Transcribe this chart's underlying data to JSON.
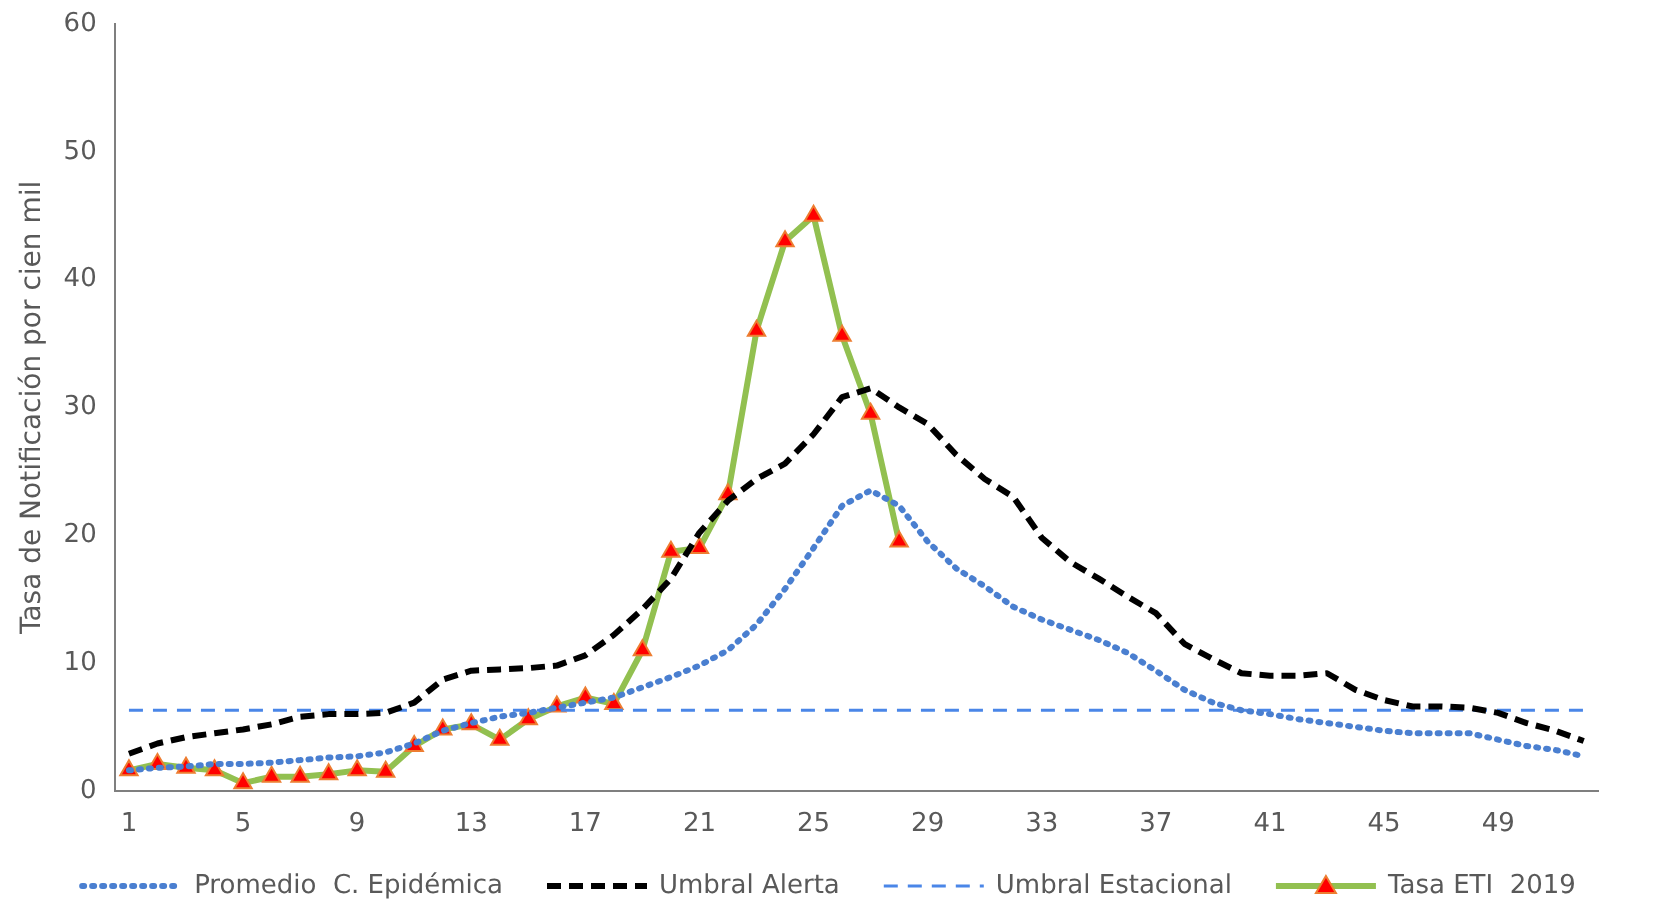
{
  "chart_data": {
    "type": "line",
    "ylabel": "Tasa de Notificación por cien mil",
    "categories": [
      "1",
      null,
      null,
      null,
      "5",
      null,
      null,
      null,
      "9",
      null,
      null,
      null,
      "13",
      null,
      null,
      null,
      "17",
      null,
      null,
      null,
      "21",
      null,
      null,
      null,
      "25",
      null,
      null,
      null,
      "29",
      null,
      null,
      null,
      "33",
      null,
      null,
      null,
      "37",
      null,
      null,
      null,
      "41",
      null,
      null,
      null,
      "45",
      null,
      null,
      null,
      "49",
      null,
      null,
      null
    ],
    "ylim": [
      0,
      60
    ],
    "yticks": [
      0,
      10,
      20,
      30,
      40,
      50,
      60
    ],
    "grid": false,
    "legend": "bottom",
    "series": [
      {
        "name": "Promedio  C. Epidémica",
        "color": "#4a7fd0",
        "line_style": "dotted",
        "marker": "none",
        "values": [
          1.6,
          1.8,
          1.9,
          2.1,
          2.1,
          2.2,
          2.4,
          2.6,
          2.7,
          3,
          3.7,
          4.7,
          5.3,
          5.8,
          6.1,
          6.5,
          6.9,
          7.3,
          8.1,
          8.9,
          9.8,
          11,
          13,
          15.8,
          19,
          22.3,
          23.5,
          22.3,
          19.5,
          17.4,
          16,
          14.4,
          13.4,
          12.6,
          11.8,
          10.8,
          9.4,
          7.9,
          6.9,
          6.3,
          6,
          5.6,
          5.3,
          5,
          4.7,
          4.5,
          4.5,
          4.5,
          4,
          3.5,
          3.2,
          2.7
        ]
      },
      {
        "name": "Umbral Alerta",
        "color": "#000000",
        "line_style": "dashed",
        "marker": "none",
        "values": [
          2.9,
          3.7,
          4.2,
          4.5,
          4.8,
          5.2,
          5.8,
          6,
          6,
          6.1,
          6.9,
          8.7,
          9.4,
          9.5,
          9.6,
          9.8,
          10.6,
          12.2,
          14.2,
          16.6,
          20.2,
          22.7,
          24.4,
          25.6,
          27.9,
          30.8,
          31.5,
          30,
          28.7,
          26.3,
          24.4,
          23,
          19.8,
          17.9,
          16.6,
          15.2,
          13.9,
          11.5,
          10.3,
          9.2,
          9,
          9,
          9.2,
          7.9,
          7.1,
          6.6,
          6.6,
          6.5,
          6.1,
          5.3,
          4.7,
          3.9
        ]
      },
      {
        "name": "Umbral Estacional",
        "color": "#4a86e8",
        "line_style": "dashed",
        "marker": "none",
        "values": [
          6.3,
          6.3,
          6.3,
          6.3,
          6.3,
          6.3,
          6.3,
          6.3,
          6.3,
          6.3,
          6.3,
          6.3,
          6.3,
          6.3,
          6.3,
          6.3,
          6.3,
          6.3,
          6.3,
          6.3,
          6.3,
          6.3,
          6.3,
          6.3,
          6.3,
          6.3,
          6.3,
          6.3,
          6.3,
          6.3,
          6.3,
          6.3,
          6.3,
          6.3,
          6.3,
          6.3,
          6.3,
          6.3,
          6.3,
          6.3,
          6.3,
          6.3,
          6.3,
          6.3,
          6.3,
          6.3,
          6.3,
          6.3,
          6.3,
          6.3,
          6.3,
          6.3
        ]
      },
      {
        "name": "Tasa ETI  2019",
        "color": "#92c050",
        "line_style": "solid",
        "marker": "triangle",
        "values": [
          1.6,
          2.1,
          1.8,
          1.6,
          0.6,
          1.1,
          1.1,
          1.3,
          1.6,
          1.5,
          3.5,
          4.8,
          5.2,
          4.0,
          5.6,
          6.6,
          7.3,
          6.8,
          11,
          18.7,
          19,
          23.2,
          36,
          43,
          45,
          35.6,
          29.5,
          19.5,
          null,
          null,
          null,
          null,
          null,
          null,
          null,
          null,
          null,
          null,
          null,
          null,
          null,
          null,
          null,
          null,
          null,
          null,
          null,
          null,
          null,
          null,
          null,
          null
        ]
      }
    ]
  }
}
